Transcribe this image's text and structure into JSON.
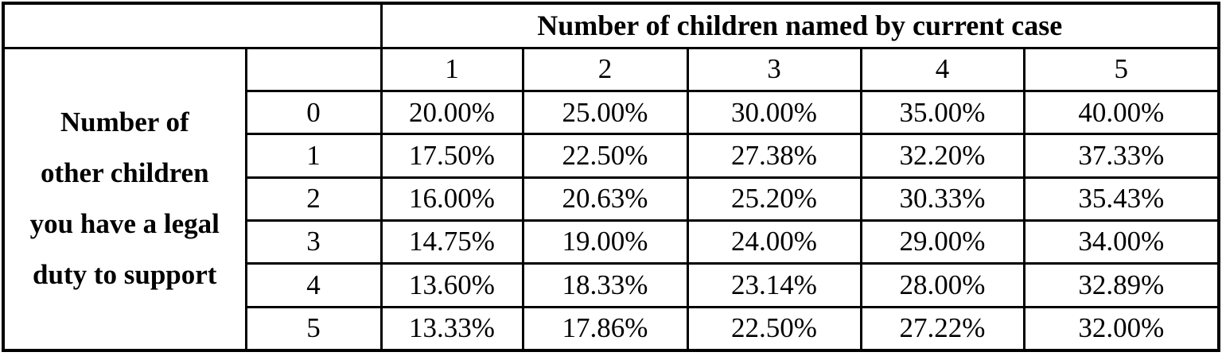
{
  "table": {
    "column_group_header": "Number of children named by current case",
    "row_group_header_lines": [
      "Number of",
      "other children",
      "you have a legal",
      "duty to support"
    ],
    "column_headers": [
      "1",
      "2",
      "3",
      "4",
      "5"
    ],
    "row_headers": [
      "0",
      "1",
      "2",
      "3",
      "4",
      "5"
    ],
    "rows": [
      [
        "20.00%",
        "25.00%",
        "30.00%",
        "35.00%",
        "40.00%"
      ],
      [
        "17.50%",
        "22.50%",
        "27.38%",
        "32.20%",
        "37.33%"
      ],
      [
        "16.00%",
        "20.63%",
        "25.20%",
        "30.33%",
        "35.43%"
      ],
      [
        "14.75%",
        "19.00%",
        "24.00%",
        "29.00%",
        "34.00%"
      ],
      [
        "13.60%",
        "18.33%",
        "23.14%",
        "28.00%",
        "32.89%"
      ],
      [
        "13.33%",
        "17.86%",
        "22.50%",
        "27.22%",
        "32.00%"
      ]
    ],
    "colors": {
      "border": "#000000",
      "text": "#000000",
      "background": "#ffffff"
    }
  }
}
